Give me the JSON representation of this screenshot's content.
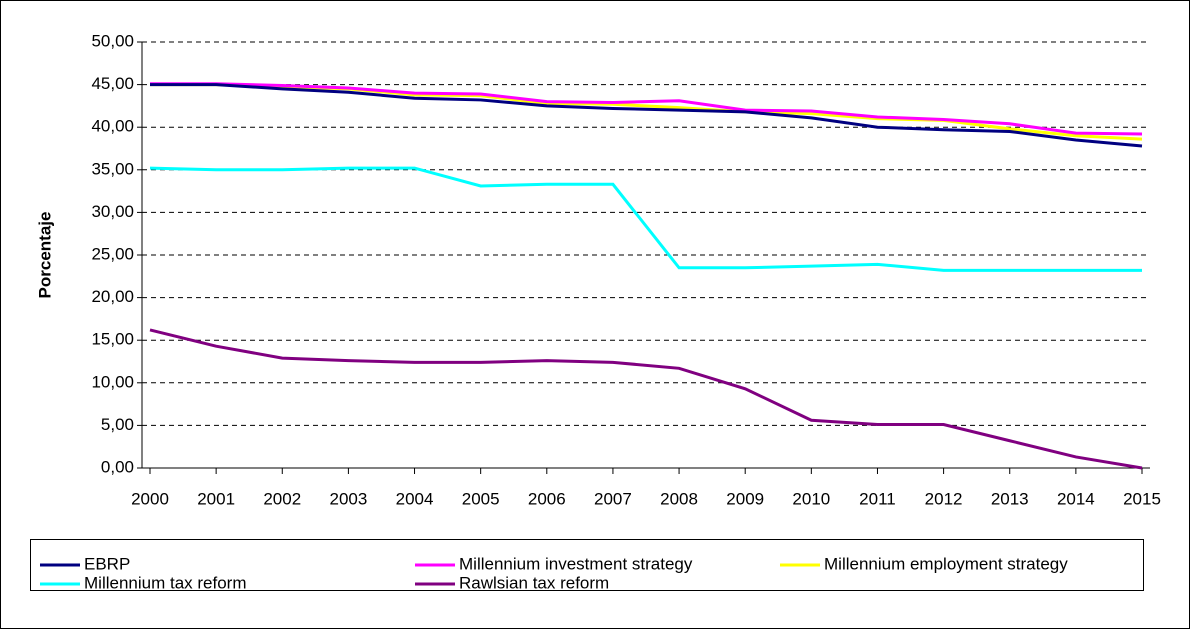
{
  "chart_data": {
    "type": "line",
    "y_label": "Porcentaje",
    "categories": [
      "2000",
      "2001",
      "2002",
      "2003",
      "2004",
      "2005",
      "2006",
      "2007",
      "2008",
      "2009",
      "2010",
      "2011",
      "2012",
      "2013",
      "2014",
      "2015"
    ],
    "series": [
      {
        "name": "EBRP",
        "color": "#000080",
        "values": [
          45.0,
          45.0,
          44.5,
          44.1,
          43.4,
          43.2,
          42.5,
          42.2,
          42.0,
          41.8,
          41.1,
          40.0,
          39.7,
          39.5,
          38.5,
          37.8
        ]
      },
      {
        "name": "Millennium investment strategy",
        "color": "#ff00ff",
        "values": [
          45.1,
          45.1,
          44.9,
          44.6,
          44.0,
          43.9,
          43.0,
          42.9,
          43.1,
          42.0,
          41.9,
          41.2,
          40.9,
          40.4,
          39.3,
          39.2
        ]
      },
      {
        "name": "Millennium employment strategy",
        "color": "#ffff00",
        "values": [
          45.0,
          45.0,
          44.8,
          44.5,
          43.8,
          43.7,
          42.8,
          42.7,
          42.3,
          41.8,
          41.6,
          41.0,
          40.8,
          39.8,
          39.0,
          38.6
        ]
      },
      {
        "name": "Millennium tax reform",
        "color": "#00ffff",
        "values": [
          35.2,
          35.0,
          35.0,
          35.2,
          35.2,
          33.1,
          33.3,
          33.3,
          23.5,
          23.5,
          23.7,
          23.9,
          23.2,
          23.2,
          23.2,
          23.2
        ]
      },
      {
        "name": "Rawlsian tax reform",
        "color": "#800080",
        "values": [
          16.2,
          14.3,
          12.9,
          12.6,
          12.4,
          12.4,
          12.6,
          12.4,
          11.7,
          9.3,
          5.6,
          5.1,
          5.1,
          3.2,
          1.3,
          0.0
        ]
      }
    ],
    "ylim": [
      0,
      50
    ],
    "yticks": [
      {
        "value": 0,
        "label": "0,00"
      },
      {
        "value": 5,
        "label": "5,00"
      },
      {
        "value": 10,
        "label": "10,00"
      },
      {
        "value": 15,
        "label": "15,00"
      },
      {
        "value": 20,
        "label": "20,00"
      },
      {
        "value": 25,
        "label": "25,00"
      },
      {
        "value": 30,
        "label": "30,00"
      },
      {
        "value": 35,
        "label": "35,00"
      },
      {
        "value": 40,
        "label": "40,00"
      },
      {
        "value": 45,
        "label": "45,00"
      },
      {
        "value": 50,
        "label": "50,00"
      }
    ],
    "grid": true,
    "legend": "bottom"
  }
}
